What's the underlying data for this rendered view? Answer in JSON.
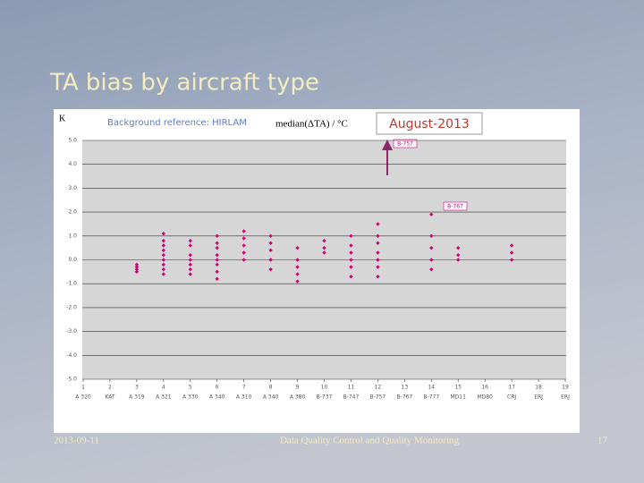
{
  "slide": {
    "title": "TA bias by aircraft type",
    "date": "2013-09-11",
    "footer": "Data Quality Control and Quality Monitoring",
    "page": "17"
  },
  "chart_data": {
    "type": "scatter",
    "corner_label": "K",
    "subtitle": "Background reference: HIRLAM",
    "y_label": "median(ΔTA) / °C",
    "title": "August-2013",
    "annotations": [
      "B-757",
      "B-767"
    ],
    "color": "#d1007a",
    "x": [
      3,
      3,
      3,
      3,
      4,
      4,
      4,
      4,
      4,
      4,
      4,
      4,
      4,
      5,
      5,
      5,
      5,
      5,
      5,
      5,
      6,
      6,
      6,
      6,
      6,
      6,
      6,
      6,
      7,
      7,
      7,
      7,
      7,
      8,
      8,
      8,
      8,
      8,
      9,
      9,
      9,
      9,
      9,
      10,
      10,
      10,
      11,
      11,
      11,
      11,
      11,
      11,
      12,
      12,
      12,
      12,
      12,
      12,
      12,
      14,
      14,
      14,
      14,
      14,
      15,
      15,
      15,
      17,
      17,
      17
    ],
    "values": [
      -0.2,
      -0.4,
      -0.5,
      -0.3,
      1.1,
      0.8,
      0.6,
      0.4,
      0.2,
      0.0,
      -0.2,
      -0.4,
      -0.6,
      0.8,
      0.6,
      0.2,
      0.0,
      -0.2,
      -0.4,
      -0.6,
      1.0,
      0.7,
      0.5,
      0.2,
      0.0,
      -0.2,
      -0.5,
      -0.8,
      1.2,
      0.9,
      0.6,
      0.3,
      0.0,
      1.0,
      0.7,
      0.4,
      0.0,
      -0.4,
      0.5,
      0.0,
      -0.3,
      -0.6,
      -0.9,
      0.8,
      0.5,
      0.3,
      1.0,
      0.6,
      0.3,
      0.0,
      -0.3,
      -0.7,
      1.5,
      1.0,
      0.7,
      0.3,
      0.0,
      -0.3,
      -0.7,
      1.9,
      1.0,
      0.5,
      0.0,
      -0.4,
      0.5,
      0.2,
      0.0,
      0.6,
      0.3,
      0.0
    ],
    "xlim": [
      1,
      19
    ],
    "xticks": [
      1,
      2,
      3,
      4,
      5,
      6,
      7,
      8,
      9,
      10,
      11,
      12,
      13,
      14,
      15,
      16,
      17,
      18,
      19
    ],
    "x_type_labels": [
      "A 320",
      "KAT",
      "A 319",
      "A 321",
      "A 330",
      "A 340",
      "A 310",
      "A 340",
      "A 380",
      "B-737",
      "B-747",
      "B-757",
      "B-767",
      "B-777",
      "MD11",
      "MD80",
      "CRJ",
      "ERJ",
      "ERJ"
    ],
    "ylim": [
      -5,
      5
    ],
    "yticks": [
      {
        "value": 5,
        "label": "5.0"
      },
      {
        "value": 4,
        "label": "4.0"
      },
      {
        "value": 3,
        "label": "3.0"
      },
      {
        "value": 2,
        "label": "2.0"
      },
      {
        "value": 1,
        "label": "1.0"
      },
      {
        "value": 0,
        "label": "0.0"
      },
      {
        "value": -1,
        "label": "-1.0"
      },
      {
        "value": -2,
        "label": "-2.0"
      },
      {
        "value": -3,
        "label": "-3.0"
      },
      {
        "value": -4,
        "label": "-4.0"
      },
      {
        "value": -5,
        "label": "-5.0"
      }
    ],
    "grid": true
  }
}
